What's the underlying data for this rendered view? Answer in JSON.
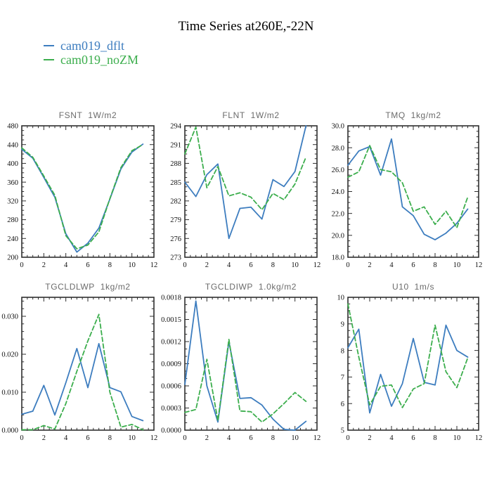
{
  "page_title": "Time Series at260E,-22N",
  "legend": {
    "items": [
      {
        "label": "cam019_dflt",
        "color": "#3d7dbf",
        "style": "solid"
      },
      {
        "label": "cam019_noZM",
        "color": "#3cae4d",
        "style": "dashed"
      }
    ]
  },
  "colors": {
    "axis": "#2e2e2e",
    "tick_label": "#111111",
    "plot_title": "#6b6b6b",
    "background": "#ffffff"
  },
  "chart_data": [
    {
      "id": "fsnt",
      "type": "line",
      "title": "FSNT  1W/m2",
      "x": [
        0,
        1,
        2,
        3,
        4,
        5,
        6,
        7,
        8,
        9,
        10,
        11
      ],
      "xlim": [
        0,
        12
      ],
      "xticks": [
        0,
        2,
        4,
        6,
        8,
        10,
        12
      ],
      "xminor_step": 0.5,
      "ylim": [
        200,
        480
      ],
      "ytick_values": [
        200,
        240,
        280,
        320,
        360,
        400,
        440,
        480
      ],
      "ytick_labels": [
        "200",
        "240",
        "280",
        "320",
        "360",
        "400",
        "440",
        "480"
      ],
      "yminor_step": 10,
      "grid": false,
      "series": [
        {
          "name": "cam019_dflt",
          "color": "#3d7dbf",
          "style": "solid",
          "values": [
            430,
            411,
            370,
            328,
            250,
            211,
            230,
            262,
            324,
            388,
            424,
            441
          ]
        },
        {
          "name": "cam019_noZM",
          "color": "#3cae4d",
          "style": "dashed",
          "values": [
            433,
            413,
            373,
            332,
            246,
            218,
            226,
            254,
            325,
            391,
            427,
            440
          ]
        }
      ]
    },
    {
      "id": "flnt",
      "type": "line",
      "title": "FLNT  1W/m2",
      "x": [
        0,
        1,
        2,
        3,
        4,
        5,
        6,
        7,
        8,
        9,
        10,
        11
      ],
      "xlim": [
        0,
        12
      ],
      "xticks": [
        0,
        2,
        4,
        6,
        8,
        10,
        12
      ],
      "xminor_step": 0.5,
      "ylim": [
        273,
        294
      ],
      "ytick_values": [
        273,
        276,
        279,
        282,
        285,
        288,
        291,
        294
      ],
      "ytick_labels": [
        "273",
        "276",
        "279",
        "282",
        "285",
        "288",
        "291",
        "294"
      ],
      "yminor_step": 0.75,
      "grid": false,
      "series": [
        {
          "name": "cam019_dflt",
          "color": "#3d7dbf",
          "style": "solid",
          "values": [
            285.0,
            282.7,
            286.2,
            287.9,
            276.0,
            280.8,
            281.0,
            279.1,
            285.4,
            284.3,
            286.7,
            294.0
          ]
        },
        {
          "name": "cam019_noZM",
          "color": "#3cae4d",
          "style": "dashed",
          "values": [
            289.5,
            293.8,
            284.1,
            287.5,
            282.8,
            283.3,
            282.6,
            280.6,
            283.2,
            282.2,
            284.7,
            289.0
          ]
        }
      ]
    },
    {
      "id": "tmq",
      "type": "line",
      "title": "TMQ  1kg/m2",
      "x": [
        0,
        1,
        2,
        3,
        4,
        5,
        6,
        7,
        8,
        9,
        10,
        11
      ],
      "xlim": [
        0,
        12
      ],
      "xticks": [
        0,
        2,
        4,
        6,
        8,
        10,
        12
      ],
      "xminor_step": 0.5,
      "ylim": [
        18.0,
        30.0
      ],
      "ytick_values": [
        18.0,
        20.0,
        22.0,
        24.0,
        26.0,
        28.0,
        30.0
      ],
      "ytick_labels": [
        "18.0",
        "20.0",
        "22.0",
        "24.0",
        "26.0",
        "28.0",
        "30.0"
      ],
      "yminor_step": 0.5,
      "grid": false,
      "series": [
        {
          "name": "cam019_dflt",
          "color": "#3d7dbf",
          "style": "solid",
          "values": [
            26.4,
            27.7,
            28.1,
            25.5,
            28.8,
            22.6,
            21.8,
            20.1,
            19.6,
            20.2,
            21.1,
            22.4
          ]
        },
        {
          "name": "cam019_noZM",
          "color": "#3cae4d",
          "style": "dashed",
          "values": [
            25.3,
            25.8,
            28.2,
            26.0,
            25.8,
            24.8,
            22.2,
            22.6,
            21.0,
            22.2,
            20.7,
            23.5
          ]
        }
      ]
    },
    {
      "id": "tgcldlwp",
      "type": "line",
      "title": "TGCLDLWP  1kg/m2",
      "x": [
        0,
        1,
        2,
        3,
        4,
        5,
        6,
        7,
        8,
        9,
        10,
        11
      ],
      "xlim": [
        0,
        12
      ],
      "xticks": [
        0,
        2,
        4,
        6,
        8,
        10,
        12
      ],
      "xminor_step": 0.5,
      "ylim": [
        0.0,
        0.035
      ],
      "ytick_values": [
        0.0,
        0.01,
        0.02,
        0.03
      ],
      "ytick_labels": [
        "0.000",
        "0.010",
        "0.020",
        "0.030"
      ],
      "yminor_step": 0.002,
      "grid": false,
      "series": [
        {
          "name": "cam019_dflt",
          "color": "#3d7dbf",
          "style": "solid",
          "values": [
            0.0042,
            0.005,
            0.0118,
            0.004,
            0.0125,
            0.0215,
            0.0112,
            0.0228,
            0.0112,
            0.0101,
            0.0036,
            0.0025
          ]
        },
        {
          "name": "cam019_noZM",
          "color": "#3cae4d",
          "style": "dashed",
          "values": [
            0.0001,
            0.0001,
            0.0012,
            0.0003,
            0.007,
            0.0155,
            0.0235,
            0.0305,
            0.01,
            0.0008,
            0.0015,
            0.0001
          ]
        }
      ]
    },
    {
      "id": "tgcldiwp",
      "type": "line",
      "title": "TGCLDIWP  1.0kg/m2",
      "x": [
        0,
        1,
        2,
        3,
        4,
        5,
        6,
        7,
        8,
        9,
        10,
        11
      ],
      "xlim": [
        0,
        12
      ],
      "xticks": [
        0,
        2,
        4,
        6,
        8,
        10,
        12
      ],
      "xminor_step": 0.5,
      "ylim": [
        0.0,
        0.0018
      ],
      "ytick_values": [
        0.0,
        0.0003,
        0.0006,
        0.0009,
        0.0012,
        0.0015,
        0.0018
      ],
      "ytick_labels": [
        "0.0000",
        "0.0003",
        "0.0006",
        "0.0009",
        "0.0012",
        "0.0015",
        "0.0018"
      ],
      "yminor_step": 0.0001,
      "grid": false,
      "series": [
        {
          "name": "cam019_dflt",
          "color": "#3d7dbf",
          "style": "solid",
          "values": [
            0.00062,
            0.00175,
            0.0006,
            0.00011,
            0.0012,
            0.00043,
            0.00044,
            0.00034,
            0.00015,
            1e-05,
            0.0,
            0.00012
          ]
        },
        {
          "name": "cam019_noZM",
          "color": "#3cae4d",
          "style": "dashed",
          "values": [
            0.00024,
            0.00028,
            0.00096,
            0.00013,
            0.00123,
            0.00026,
            0.00025,
            0.00011,
            0.00022,
            0.00036,
            0.00051,
            0.00039
          ]
        }
      ]
    },
    {
      "id": "u10",
      "type": "line",
      "title": "U10  1m/s",
      "x": [
        0,
        1,
        2,
        3,
        4,
        5,
        6,
        7,
        8,
        9,
        10,
        11
      ],
      "xlim": [
        0,
        12
      ],
      "xticks": [
        0,
        2,
        4,
        6,
        8,
        10,
        12
      ],
      "xminor_step": 0.5,
      "ylim": [
        5,
        10
      ],
      "ytick_values": [
        5,
        6,
        7,
        8,
        9,
        10
      ],
      "ytick_labels": [
        "5",
        "6",
        "7",
        "8",
        "9",
        "10"
      ],
      "yminor_step": 0.25,
      "grid": false,
      "series": [
        {
          "name": "cam019_dflt",
          "color": "#3d7dbf",
          "style": "solid",
          "values": [
            8.1,
            8.8,
            5.65,
            7.1,
            5.9,
            6.75,
            8.45,
            6.8,
            6.7,
            8.95,
            8.0,
            7.75
          ]
        },
        {
          "name": "cam019_noZM",
          "color": "#3cae4d",
          "style": "dashed",
          "values": [
            9.75,
            7.75,
            5.95,
            6.65,
            6.7,
            5.85,
            6.55,
            6.75,
            8.95,
            7.2,
            6.6,
            7.72
          ]
        }
      ]
    }
  ]
}
